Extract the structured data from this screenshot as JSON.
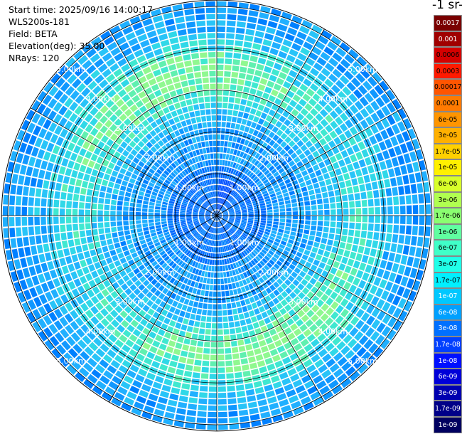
{
  "info": {
    "start_time": "Start time: 2025/09/16 14:00:17",
    "instrument": "WLS200s-181",
    "field": "Field: BETA",
    "elevation": "Elevation(deg): 35.00",
    "nrays": "NRays: 120"
  },
  "colorbar": {
    "title_fragment": "-1 sr-",
    "labels": [
      "0.0017",
      "0.001",
      "0.0006",
      "0.0003",
      "0.00017",
      "0.0001",
      "6e-05",
      "3e-05",
      "1.7e-05",
      "1e-05",
      "6e-06",
      "3e-06",
      "1.7e-06",
      "1e-06",
      "6e-07",
      "3e-07",
      "1.7e-07",
      "1e-07",
      "6e-08",
      "3e-08",
      "1.7e-08",
      "1e-08",
      "6e-09",
      "3e-09",
      "1.7e-09",
      "1e-09"
    ],
    "colors": [
      "#7a0000",
      "#a00000",
      "#d40000",
      "#ff1a00",
      "#ff5500",
      "#ff7a00",
      "#ff9500",
      "#ffb000",
      "#ffd000",
      "#fff000",
      "#d8ff2a",
      "#b0ff50",
      "#8aff70",
      "#60ffa0",
      "#40ffc8",
      "#20ffe8",
      "#00f0ff",
      "#00c8ff",
      "#00a0ff",
      "#0070ff",
      "#0040ff",
      "#0010ff",
      "#0000d8",
      "#0000b0",
      "#000088",
      "#000060"
    ],
    "text_colors": [
      "white",
      "white",
      "black",
      "black",
      "black",
      "black",
      "black",
      "black",
      "black",
      "black",
      "black",
      "black",
      "black",
      "black",
      "black",
      "black",
      "black",
      "white",
      "white",
      "white",
      "white",
      "white",
      "white",
      "white",
      "white",
      "white"
    ]
  },
  "chart_data": {
    "type": "heatmap",
    "projection": "polar PPI",
    "rays": 120,
    "max_range_km": 5.15,
    "range_rings": [
      {
        "km": 1,
        "label": "1.00km"
      },
      {
        "km": 2,
        "label": "2.00km"
      },
      {
        "km": 3,
        "label": "3.00km"
      },
      {
        "km": 4,
        "label": "4.00km"
      },
      {
        "km": 5,
        "label": "5.00km"
      }
    ],
    "radial_lines_deg": [
      0,
      30,
      60,
      90,
      120,
      150,
      180,
      210,
      240,
      270,
      300,
      330
    ],
    "log_scale": true,
    "value_range": [
      1e-09,
      0.0017
    ]
  }
}
